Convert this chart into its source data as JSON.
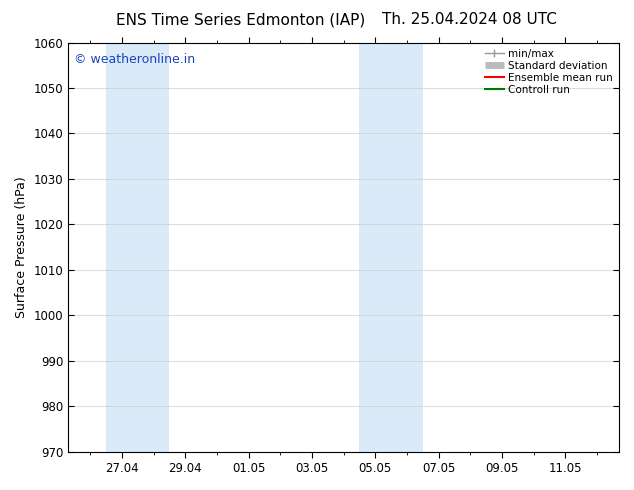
{
  "title_left": "ENS Time Series Edmonton (IAP)",
  "title_right": "Th. 25.04.2024 08 UTC",
  "ylabel": "Surface Pressure (hPa)",
  "ylim": [
    970,
    1060
  ],
  "yticks": [
    970,
    980,
    990,
    1000,
    1010,
    1020,
    1030,
    1040,
    1050,
    1060
  ],
  "xtick_labels": [
    "27.04",
    "29.04",
    "01.05",
    "03.05",
    "05.05",
    "07.05",
    "09.05",
    "11.05"
  ],
  "xtick_positions": [
    2,
    4,
    6,
    8,
    10,
    12,
    14,
    16
  ],
  "xlim": [
    0.3,
    17.7
  ],
  "background_color": "#ffffff",
  "plot_bg_color": "#ffffff",
  "shaded_bands": [
    {
      "x_start": 1.5,
      "x_end": 3.5
    },
    {
      "x_start": 9.5,
      "x_end": 11.5
    }
  ],
  "shaded_color": "#daeaf8",
  "watermark_text": "© weatheronline.in",
  "watermark_color": "#1a44bb",
  "legend_labels": [
    "min/max",
    "Standard deviation",
    "Ensemble mean run",
    "Controll run"
  ],
  "legend_colors_line": [
    "#999999",
    "#bbbbbb",
    "#ff0000",
    "#007700"
  ],
  "title_fontsize": 11,
  "tick_label_fontsize": 8.5,
  "ylabel_fontsize": 9,
  "watermark_fontsize": 9,
  "grid_color": "#cccccc",
  "spine_color": "#000000",
  "minor_tick_color": "#000000"
}
